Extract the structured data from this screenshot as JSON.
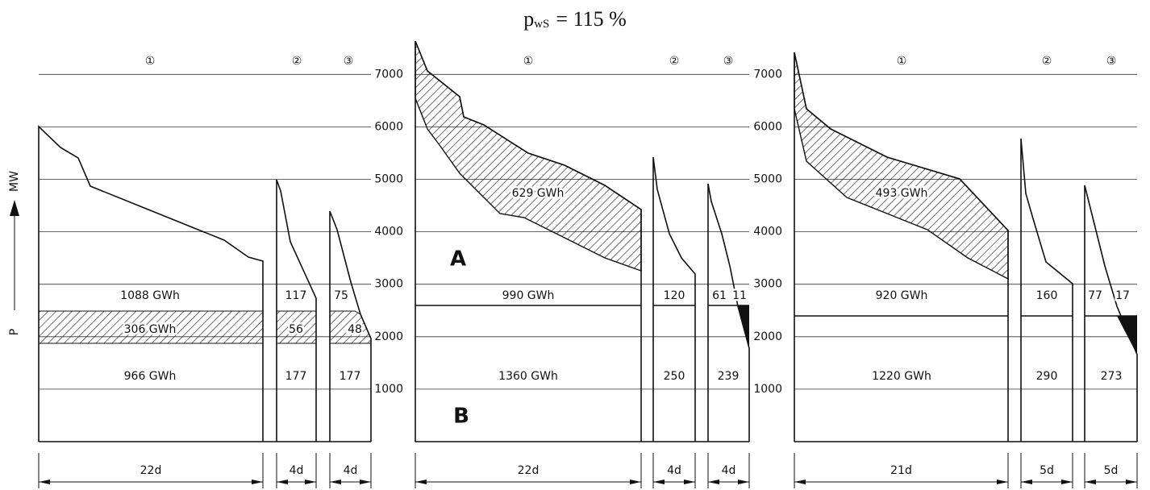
{
  "title": {
    "symbol": "p",
    "subscript": "wS",
    "text": "= 115 %"
  },
  "axis_label": "P",
  "axis_unit": "MW",
  "y_ticks": [
    1000,
    2000,
    3000,
    4000,
    5000,
    6000,
    7000
  ],
  "markers": [
    "A",
    "B"
  ],
  "panels": [
    {
      "columns": [
        {
          "label": "①",
          "energies": [
            "1088 GWh",
            "306 GWh",
            "966 GWh"
          ],
          "duration": "22d"
        },
        {
          "label": "②",
          "energies": [
            "117",
            "56",
            "177"
          ],
          "duration": "4d"
        },
        {
          "label": "③",
          "energies": [
            "75",
            "48",
            "177"
          ],
          "duration": "4d"
        }
      ]
    },
    {
      "hatched": "629 GWh",
      "columns": [
        {
          "label": "①",
          "energies": [
            "990 GWh",
            "1360 GWh"
          ],
          "duration": "22d"
        },
        {
          "label": "②",
          "energies": [
            "120",
            "250"
          ],
          "duration": "4d"
        },
        {
          "label": "③",
          "energies": [
            "61",
            "11",
            "239"
          ],
          "duration": "4d"
        }
      ]
    },
    {
      "hatched": "493 GWh",
      "columns": [
        {
          "label": "①",
          "energies": [
            "920 GWh",
            "1220 GWh"
          ],
          "duration": "21d"
        },
        {
          "label": "②",
          "energies": [
            "160",
            "290"
          ],
          "duration": "5d"
        },
        {
          "label": "③",
          "energies": [
            "77",
            "17",
            "273"
          ],
          "duration": "5d"
        }
      ]
    }
  ]
}
